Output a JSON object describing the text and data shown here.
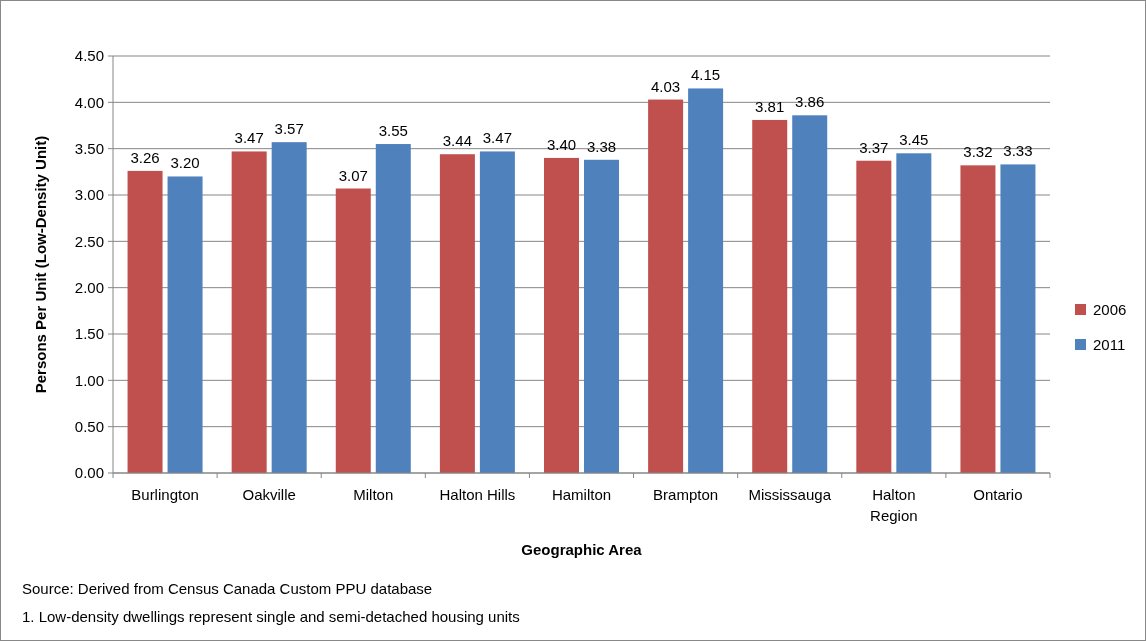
{
  "chart_data": {
    "type": "bar",
    "xlabel": "Geographic Area",
    "ylabel": "Persons Per Unit (Low-Density Unit)",
    "categories": [
      "Burlington",
      "Oakville",
      "Milton",
      "Halton Hills",
      "Hamilton",
      "Brampton",
      "Mississauga",
      "Halton Region",
      "Ontario"
    ],
    "series": [
      {
        "name": "2006",
        "color": "#c0504d",
        "values": [
          3.26,
          3.47,
          3.07,
          3.44,
          3.4,
          4.03,
          3.81,
          3.37,
          3.32
        ],
        "value_labels": [
          "3.26",
          "3.47",
          "3.07",
          "3.44",
          "3.40",
          "4.03",
          "3.81",
          "3.37",
          "3.32"
        ]
      },
      {
        "name": "2011",
        "color": "#4f81bd",
        "values": [
          3.2,
          3.57,
          3.55,
          3.47,
          3.38,
          4.15,
          3.86,
          3.45,
          3.33
        ],
        "value_labels": [
          "3.20",
          "3.57",
          "3.55",
          "3.47",
          "3.38",
          "4.15",
          "3.86",
          "3.45",
          "3.33"
        ]
      }
    ],
    "ylim": [
      0,
      4.5
    ],
    "yticks": [
      {
        "value": 0,
        "label": "0.00"
      },
      {
        "value": 0.5,
        "label": "0.50"
      },
      {
        "value": 1,
        "label": "1.00"
      },
      {
        "value": 1.5,
        "label": "1.50"
      },
      {
        "value": 2,
        "label": "2.00"
      },
      {
        "value": 2.5,
        "label": "2.50"
      },
      {
        "value": 3,
        "label": "3.00"
      },
      {
        "value": 3.5,
        "label": "3.50"
      },
      {
        "value": 4,
        "label": "4.00"
      },
      {
        "value": 4.5,
        "label": "4.50"
      }
    ],
    "grid": "y",
    "legend": "right",
    "annotations": [
      "Source: Derived from Census Canada Custom PPU database",
      "1. Low-density dwellings represent single and semi-detached housing units"
    ]
  }
}
